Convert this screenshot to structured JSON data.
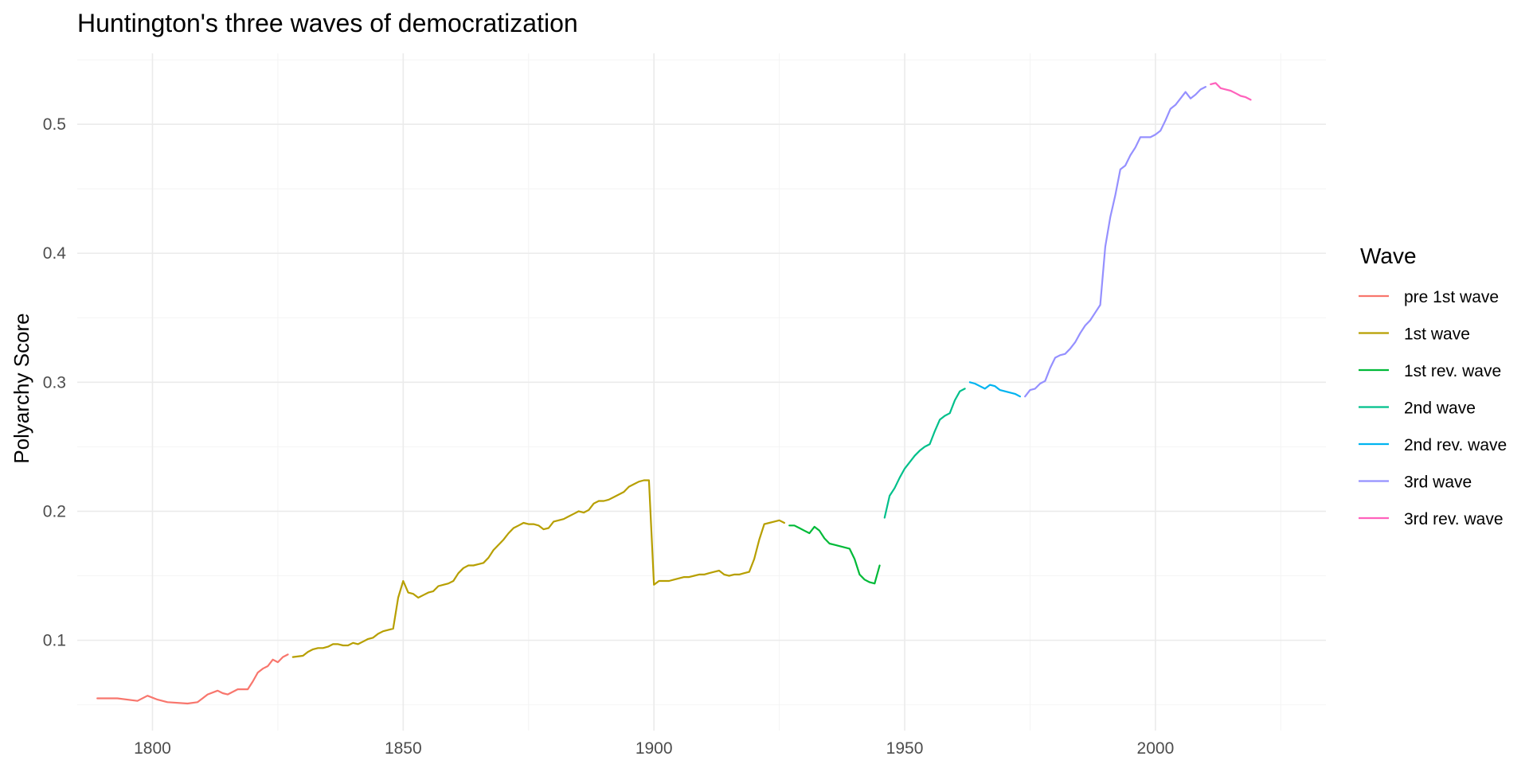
{
  "chart_data": {
    "type": "line",
    "title": "Huntington's three waves of democratization",
    "xlabel": "",
    "ylabel": "Polyarchy Score",
    "xlim": [
      1785,
      2416
    ],
    "ylim": [
      0.03,
      0.555
    ],
    "x_ticks": [
      1800,
      1850,
      1900,
      1950,
      2000
    ],
    "x_tick_labels": [
      "1800",
      "1850",
      "1900",
      "1950",
      "2000"
    ],
    "y_ticks": [
      0.1,
      0.2,
      0.3,
      0.4,
      0.5
    ],
    "y_tick_labels": [
      "0.1",
      "0.2",
      "0.3",
      "0.4",
      "0.5"
    ],
    "grid": true,
    "legend": {
      "title": "Wave",
      "position": "right"
    },
    "series": [
      {
        "name": "pre 1st wave",
        "color": "#F8766D",
        "x": [
          1789,
          1793,
          1797,
          1799,
          1801,
          1803,
          1807,
          1809,
          1810,
          1811,
          1813,
          1814,
          1815,
          1816,
          1817,
          1819,
          1820,
          1821,
          1822,
          1823,
          1824,
          1825,
          1826,
          1827
        ],
        "y": [
          0.055,
          0.055,
          0.053,
          0.057,
          0.054,
          0.052,
          0.051,
          0.052,
          0.055,
          0.058,
          0.061,
          0.059,
          0.058,
          0.06,
          0.062,
          0.062,
          0.068,
          0.075,
          0.078,
          0.08,
          0.085,
          0.083,
          0.087,
          0.089
        ]
      },
      {
        "name": "1st wave",
        "color": "#B79F00",
        "x": [
          1828,
          1830,
          1831,
          1832,
          1833,
          1834,
          1835,
          1836,
          1837,
          1838,
          1839,
          1840,
          1841,
          1842,
          1843,
          1844,
          1845,
          1846,
          1847,
          1848,
          1849,
          1850,
          1851,
          1852,
          1853,
          1854,
          1855,
          1856,
          1857,
          1858,
          1859,
          1860,
          1861,
          1862,
          1863,
          1864,
          1865,
          1866,
          1867,
          1868,
          1869,
          1870,
          1871,
          1872,
          1873,
          1874,
          1875,
          1876,
          1877,
          1878,
          1879,
          1880,
          1881,
          1882,
          1883,
          1884,
          1885,
          1886,
          1887,
          1888,
          1889,
          1890,
          1891,
          1892,
          1893,
          1894,
          1895,
          1896,
          1897,
          1898,
          1899,
          1900,
          1901,
          1902,
          1903,
          1904,
          1905,
          1906,
          1907,
          1908,
          1909,
          1910,
          1911,
          1912,
          1913,
          1914,
          1915,
          1916,
          1917,
          1918,
          1919,
          1920,
          1921,
          1922,
          1923,
          1924,
          1925,
          1926
        ],
        "y": [
          0.087,
          0.088,
          0.091,
          0.093,
          0.094,
          0.094,
          0.095,
          0.097,
          0.097,
          0.096,
          0.096,
          0.098,
          0.097,
          0.099,
          0.101,
          0.102,
          0.105,
          0.107,
          0.108,
          0.109,
          0.133,
          0.146,
          0.137,
          0.136,
          0.133,
          0.135,
          0.137,
          0.138,
          0.142,
          0.143,
          0.144,
          0.146,
          0.152,
          0.156,
          0.158,
          0.158,
          0.159,
          0.16,
          0.164,
          0.17,
          0.174,
          0.178,
          0.183,
          0.187,
          0.189,
          0.191,
          0.19,
          0.19,
          0.189,
          0.186,
          0.187,
          0.192,
          0.193,
          0.194,
          0.196,
          0.198,
          0.2,
          0.199,
          0.201,
          0.206,
          0.208,
          0.208,
          0.209,
          0.211,
          0.213,
          0.215,
          0.219,
          0.221,
          0.223,
          0.224,
          0.224,
          0.143,
          0.146,
          0.146,
          0.146,
          0.147,
          0.148,
          0.149,
          0.149,
          0.15,
          0.151,
          0.151,
          0.152,
          0.153,
          0.154,
          0.151,
          0.15,
          0.151,
          0.151,
          0.152,
          0.153,
          0.163,
          0.178,
          0.19,
          0.191,
          0.192,
          0.193,
          0.191
        ]
      },
      {
        "name": "1st rev. wave",
        "color": "#00BA38",
        "x": [
          1927,
          1928,
          1929,
          1930,
          1931,
          1932,
          1933,
          1934,
          1935,
          1936,
          1937,
          1938,
          1939,
          1940,
          1941,
          1942,
          1943,
          1944,
          1945
        ],
        "y": [
          0.189,
          0.189,
          0.187,
          0.185,
          0.183,
          0.188,
          0.185,
          0.179,
          0.175,
          0.174,
          0.173,
          0.172,
          0.171,
          0.163,
          0.151,
          0.147,
          0.145,
          0.144,
          0.158
        ]
      },
      {
        "name": "2nd wave",
        "color": "#00C08B",
        "x": [
          1946,
          1947,
          1948,
          1949,
          1950,
          1951,
          1952,
          1953,
          1954,
          1955,
          1956,
          1957,
          1958,
          1959,
          1960,
          1961,
          1962
        ],
        "y": [
          0.195,
          0.212,
          0.218,
          0.226,
          0.233,
          0.238,
          0.243,
          0.247,
          0.25,
          0.252,
          0.262,
          0.271,
          0.274,
          0.276,
          0.286,
          0.293,
          0.295
        ]
      },
      {
        "name": "2nd rev. wave",
        "color": "#00B4F0",
        "x": [
          1963,
          1964,
          1965,
          1966,
          1967,
          1968,
          1969,
          1970,
          1971,
          1972,
          1973
        ],
        "y": [
          0.3,
          0.299,
          0.297,
          0.295,
          0.298,
          0.297,
          0.294,
          0.293,
          0.292,
          0.291,
          0.289
        ]
      },
      {
        "name": "3rd wave",
        "color": "#9590FF",
        "x": [
          1974,
          1975,
          1976,
          1977,
          1978,
          1979,
          1980,
          1981,
          1982,
          1983,
          1984,
          1985,
          1986,
          1987,
          1988,
          1989,
          1990,
          1991,
          1992,
          1993,
          1994,
          1995,
          1996,
          1997,
          1998,
          1999,
          2000,
          2001,
          2002,
          2003,
          2004,
          2005,
          2006,
          2007,
          2008,
          2009,
          2010
        ],
        "y": [
          0.289,
          0.294,
          0.295,
          0.299,
          0.301,
          0.311,
          0.319,
          0.321,
          0.322,
          0.326,
          0.331,
          0.338,
          0.344,
          0.348,
          0.354,
          0.36,
          0.405,
          0.428,
          0.445,
          0.465,
          0.468,
          0.476,
          0.482,
          0.49,
          0.49,
          0.49,
          0.492,
          0.495,
          0.503,
          0.512,
          0.515,
          0.52,
          0.525,
          0.52,
          0.523,
          0.527,
          0.529
        ]
      },
      {
        "name": "3rd rev. wave",
        "color": "#FF62BC",
        "x": [
          2011,
          2012,
          2013,
          2014,
          2015,
          2016,
          2017,
          2018,
          2019
        ],
        "y": [
          0.531,
          0.532,
          0.528,
          0.527,
          0.526,
          0.524,
          0.522,
          0.521,
          0.519
        ]
      }
    ]
  }
}
